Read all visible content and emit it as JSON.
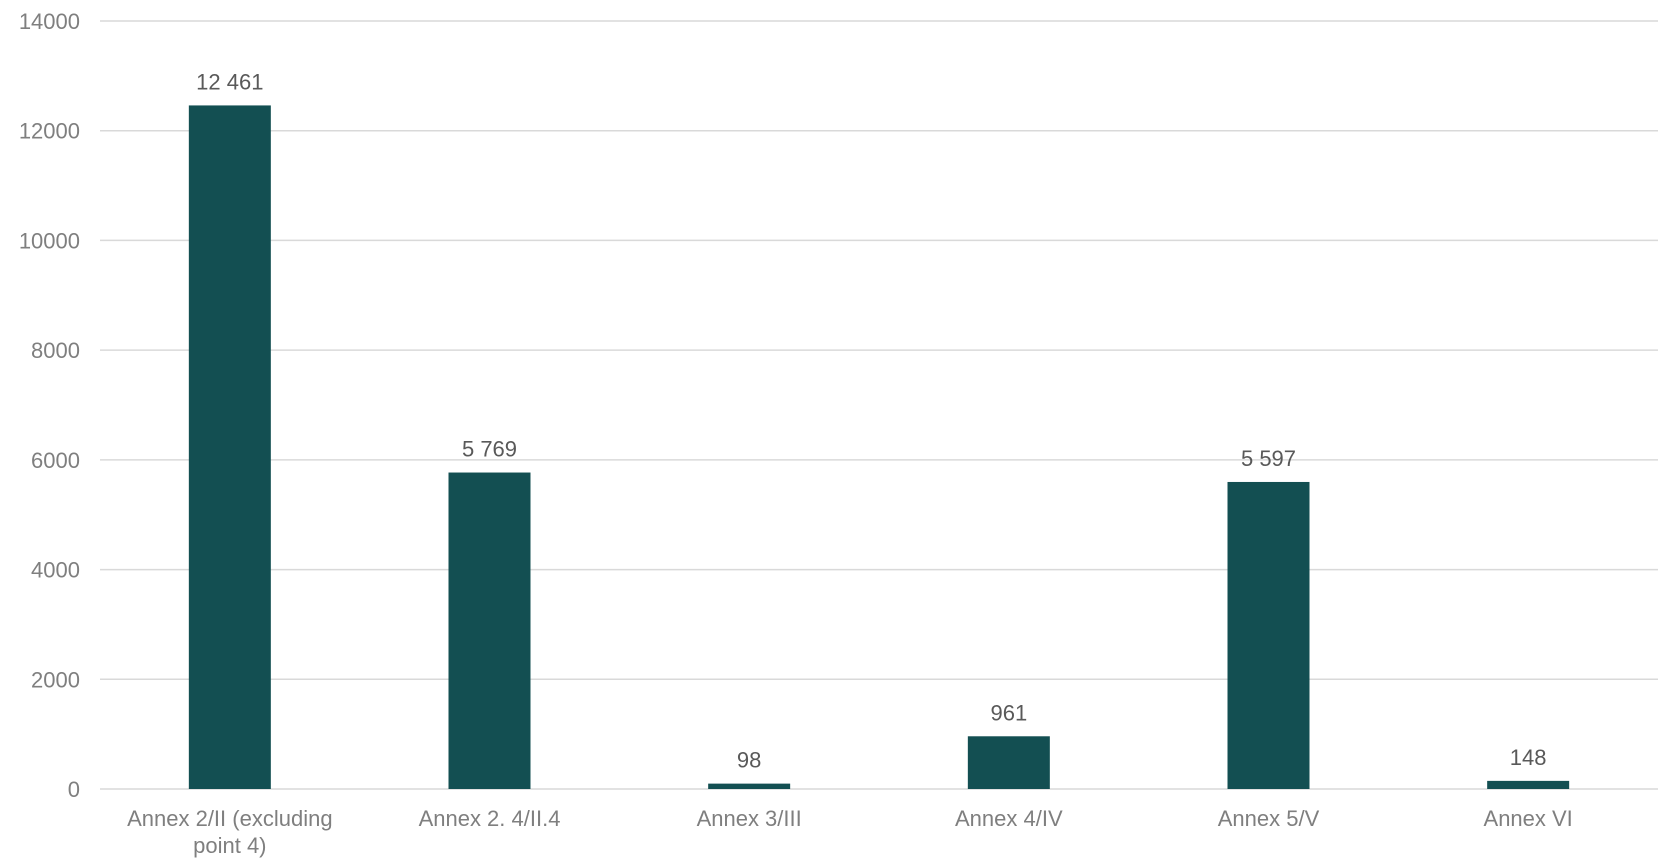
{
  "chart_data": {
    "type": "bar",
    "title": "",
    "xlabel": "",
    "ylabel": "",
    "categories": [
      "Annex 2/II (excluding point 4)",
      "Annex 2. 4/II.4",
      "Annex 3/III",
      "Annex 4/IV",
      "Annex 5/V",
      "Annex VI"
    ],
    "values": [
      12461,
      5769,
      98,
      961,
      5597,
      148
    ],
    "data_labels": [
      "12 461",
      "5 769",
      "98",
      "961",
      "5 597",
      "148"
    ],
    "ylim": [
      0,
      14000
    ],
    "yticks": [
      0,
      2000,
      4000,
      6000,
      8000,
      10000,
      12000,
      14000
    ],
    "ytick_labels": [
      "0",
      "2000",
      "4000",
      "6000",
      "8000",
      "10000",
      "12000",
      "14000"
    ],
    "grid": true,
    "legend": "none",
    "bar_color": "#134f52"
  }
}
